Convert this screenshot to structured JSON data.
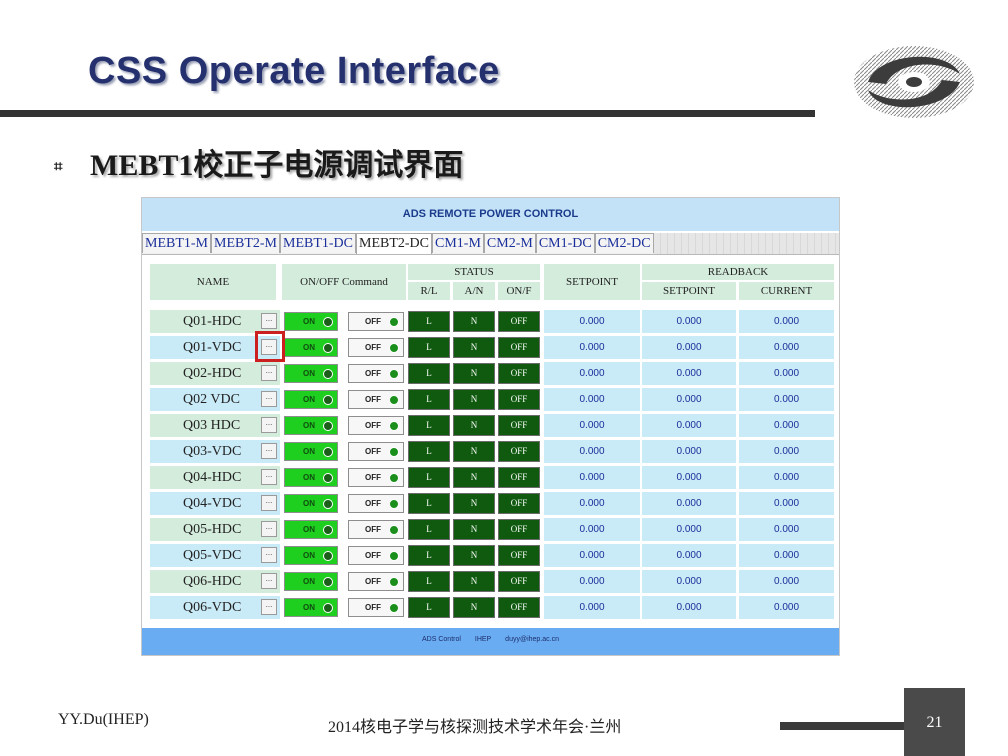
{
  "slide": {
    "title": "CSS Operate Interface",
    "bullet": "⌗",
    "subtitle": "MEBT1校正子电源调试界面",
    "author": "YY.Du(IHEP)",
    "conference": "2014核电子学与核探测技术学术年会·兰州",
    "page_number": "21"
  },
  "app": {
    "title": "ADS REMOTE POWER CONTROL",
    "tabs": [
      "MEBT1-M",
      "MEBT2-M",
      "MEBT1-DC",
      "MEBT2-DC",
      "CM1-M",
      "CM2-M",
      "CM1-DC",
      "CM2-DC"
    ],
    "active_tab_index": 3,
    "headers": {
      "name": "NAME",
      "onoff": "ON/OFF Command",
      "status": "STATUS",
      "status_sub": [
        "R/L",
        "A/N",
        "ON/F"
      ],
      "setpoint": "SETPOINT",
      "readback": "READBACK",
      "readback_sub": [
        "SETPOINT",
        "CURRENT"
      ]
    },
    "button_labels": {
      "detail": "...",
      "on": "ON",
      "off": "OFF"
    },
    "rows": [
      {
        "name": "Q01-HDC",
        "rl": "L",
        "an": "N",
        "onf": "OFF",
        "setpoint": "0.000",
        "rb_setpoint": "0.000",
        "current": "0.000"
      },
      {
        "name": "Q01-VDC",
        "rl": "L",
        "an": "N",
        "onf": "OFF",
        "setpoint": "0.000",
        "rb_setpoint": "0.000",
        "current": "0.000"
      },
      {
        "name": "Q02-HDC",
        "rl": "L",
        "an": "N",
        "onf": "OFF",
        "setpoint": "0.000",
        "rb_setpoint": "0.000",
        "current": "0.000"
      },
      {
        "name": "Q02 VDC",
        "rl": "L",
        "an": "N",
        "onf": "OFF",
        "setpoint": "0.000",
        "rb_setpoint": "0.000",
        "current": "0.000"
      },
      {
        "name": "Q03 HDC",
        "rl": "L",
        "an": "N",
        "onf": "OFF",
        "setpoint": "0.000",
        "rb_setpoint": "0.000",
        "current": "0.000"
      },
      {
        "name": "Q03-VDC",
        "rl": "L",
        "an": "N",
        "onf": "OFF",
        "setpoint": "0.000",
        "rb_setpoint": "0.000",
        "current": "0.000"
      },
      {
        "name": "Q04-HDC",
        "rl": "L",
        "an": "N",
        "onf": "OFF",
        "setpoint": "0.000",
        "rb_setpoint": "0.000",
        "current": "0.000"
      },
      {
        "name": "Q04-VDC",
        "rl": "L",
        "an": "N",
        "onf": "OFF",
        "setpoint": "0.000",
        "rb_setpoint": "0.000",
        "current": "0.000"
      },
      {
        "name": "Q05-HDC",
        "rl": "L",
        "an": "N",
        "onf": "OFF",
        "setpoint": "0.000",
        "rb_setpoint": "0.000",
        "current": "0.000"
      },
      {
        "name": "Q05-VDC",
        "rl": "L",
        "an": "N",
        "onf": "OFF",
        "setpoint": "0.000",
        "rb_setpoint": "0.000",
        "current": "0.000"
      },
      {
        "name": "Q06-HDC",
        "rl": "L",
        "an": "N",
        "onf": "OFF",
        "setpoint": "0.000",
        "rb_setpoint": "0.000",
        "current": "0.000"
      },
      {
        "name": "Q06-VDC",
        "rl": "L",
        "an": "N",
        "onf": "OFF",
        "setpoint": "0.000",
        "rb_setpoint": "0.000",
        "current": "0.000"
      }
    ],
    "selected_row_index": 1,
    "footer": [
      "ADS Control",
      "IHEP",
      "duyy@ihep.ac.cn"
    ]
  },
  "colors": {
    "title_navy": "#25306e",
    "header_blue": "#c3e2f7",
    "row_green": "#d4ecdc",
    "row_blue": "#c9eaf7",
    "on_green": "#1fcf1f",
    "status_dark_green": "#0f5a0f",
    "selection_red": "#cc1f1f",
    "footer_blue": "#6aacf1",
    "value_blue": "#1a2f9a"
  },
  "icons": {
    "logo": "ihep-logo-icon",
    "led": "led-indicator-icon"
  }
}
